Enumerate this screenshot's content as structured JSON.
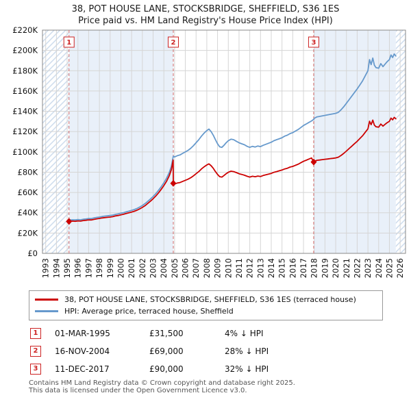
{
  "transactions": [
    {
      "num": "1",
      "date": "01-MAR-1995",
      "price": "£31,500",
      "hpi": "4% ↓ HPI"
    },
    {
      "num": "2",
      "date": "16-NOV-2004",
      "price": "£69,000",
      "hpi": "28% ↓ HPI"
    },
    {
      "num": "3",
      "date": "11-DEC-2017",
      "price": "£90,000",
      "hpi": "32% ↓ HPI"
    }
  ],
  "footer": {
    "line1": "Contains HM Land Registry data © Crown copyright and database right 2025.",
    "line2": "This data is licensed under the Open Government Licence v3.0."
  },
  "chart_data": {
    "type": "line",
    "title": "38, POT HOUSE LANE, STOCKSBRIDGE, SHEFFIELD, S36 1ES",
    "subtitle": "Price paid vs. HM Land Registry's House Price Index (HPI)",
    "x_range": [
      1992.7,
      2026.5
    ],
    "y_range": [
      0,
      220000
    ],
    "x_ticks": [
      1993,
      1994,
      1995,
      1996,
      1997,
      1998,
      1999,
      2000,
      2001,
      2002,
      2003,
      2004,
      2005,
      2006,
      2007,
      2008,
      2009,
      2010,
      2011,
      2012,
      2013,
      2014,
      2015,
      2016,
      2017,
      2018,
      2019,
      2020,
      2021,
      2022,
      2023,
      2024,
      2025,
      2026
    ],
    "y_ticks": [
      0,
      20000,
      40000,
      60000,
      80000,
      100000,
      120000,
      140000,
      160000,
      180000,
      200000,
      220000
    ],
    "y_tick_labels": [
      "£0",
      "£20K",
      "£40K",
      "£60K",
      "£80K",
      "£100K",
      "£120K",
      "£140K",
      "£160K",
      "£180K",
      "£200K",
      "£220K"
    ],
    "grid": true,
    "legend_position": "bottom",
    "colors": {
      "shade": "#e9f0f9",
      "hatch": "#c9d9eb",
      "grid": "#d5d5d5",
      "border": "#888888",
      "sale_line": "#d46a6a",
      "marker_box": "#cc2222"
    },
    "shaded_regions": [
      [
        1995.17,
        2004.88
      ],
      [
        2017.95,
        2025.6
      ]
    ],
    "hatched_regions": [
      [
        1992.7,
        1995.17
      ],
      [
        2025.6,
        2026.5
      ]
    ],
    "markers": [
      {
        "label": "1",
        "x": 1995.17,
        "y": 31500
      },
      {
        "label": "2",
        "x": 2004.88,
        "y": 69000
      },
      {
        "label": "3",
        "x": 2017.95,
        "y": 90000
      }
    ],
    "series": [
      {
        "name": "38, POT HOUSE LANE, STOCKSBRIDGE, SHEFFIELD, S36 1ES (terraced house)",
        "color": "#cc0000",
        "points": [
          [
            1995.17,
            31500
          ],
          [
            1995.5,
            31800
          ],
          [
            1995.75,
            31600
          ],
          [
            1996,
            32000
          ],
          [
            1996.25,
            31800
          ],
          [
            1996.5,
            32300
          ],
          [
            1996.75,
            32600
          ],
          [
            1997,
            33000
          ],
          [
            1997.25,
            32900
          ],
          [
            1997.5,
            33500
          ],
          [
            1997.75,
            34000
          ],
          [
            1998,
            34400
          ],
          [
            1998.25,
            34900
          ],
          [
            1998.5,
            35200
          ],
          [
            1998.75,
            35500
          ],
          [
            1999,
            35800
          ],
          [
            1999.25,
            36200
          ],
          [
            1999.5,
            36900
          ],
          [
            1999.75,
            37300
          ],
          [
            2000,
            38000
          ],
          [
            2000.25,
            38500
          ],
          [
            2000.5,
            39300
          ],
          [
            2000.75,
            40000
          ],
          [
            2001,
            40700
          ],
          [
            2001.25,
            41500
          ],
          [
            2001.5,
            42500
          ],
          [
            2001.75,
            43800
          ],
          [
            2002,
            45300
          ],
          [
            2002.25,
            47000
          ],
          [
            2002.5,
            49200
          ],
          [
            2002.75,
            51400
          ],
          [
            2003,
            53800
          ],
          [
            2003.25,
            56500
          ],
          [
            2003.5,
            59500
          ],
          [
            2003.75,
            63000
          ],
          [
            2004,
            66800
          ],
          [
            2004.25,
            71000
          ],
          [
            2004.5,
            76300
          ],
          [
            2004.7,
            82500
          ],
          [
            2004.87,
            92000
          ],
          [
            2004.88,
            69000
          ],
          [
            2005,
            68400
          ],
          [
            2005.25,
            69300
          ],
          [
            2005.5,
            69800
          ],
          [
            2005.75,
            70900
          ],
          [
            2006,
            72000
          ],
          [
            2006.25,
            73100
          ],
          [
            2006.5,
            74500
          ],
          [
            2006.75,
            76300
          ],
          [
            2007,
            78500
          ],
          [
            2007.25,
            80600
          ],
          [
            2007.5,
            83200
          ],
          [
            2007.75,
            85300
          ],
          [
            2008,
            87100
          ],
          [
            2008.2,
            88200
          ],
          [
            2008.4,
            86400
          ],
          [
            2008.6,
            83900
          ],
          [
            2008.8,
            80600
          ],
          [
            2009,
            77800
          ],
          [
            2009.2,
            75600
          ],
          [
            2009.4,
            75200
          ],
          [
            2009.6,
            76700
          ],
          [
            2009.8,
            78500
          ],
          [
            2010,
            79900
          ],
          [
            2010.25,
            81000
          ],
          [
            2010.5,
            80600
          ],
          [
            2010.75,
            79600
          ],
          [
            2011,
            78500
          ],
          [
            2011.25,
            77800
          ],
          [
            2011.5,
            77000
          ],
          [
            2011.75,
            76000
          ],
          [
            2012,
            75200
          ],
          [
            2012.25,
            76000
          ],
          [
            2012.5,
            75500
          ],
          [
            2012.75,
            76200
          ],
          [
            2013,
            75700
          ],
          [
            2013.25,
            76700
          ],
          [
            2013.5,
            77400
          ],
          [
            2013.75,
            78100
          ],
          [
            2014,
            78800
          ],
          [
            2014.25,
            79900
          ],
          [
            2014.5,
            80600
          ],
          [
            2014.75,
            81400
          ],
          [
            2015,
            82100
          ],
          [
            2015.25,
            83200
          ],
          [
            2015.5,
            83900
          ],
          [
            2015.75,
            85000
          ],
          [
            2016,
            85700
          ],
          [
            2016.25,
            86800
          ],
          [
            2016.5,
            87800
          ],
          [
            2016.75,
            89300
          ],
          [
            2017,
            90700
          ],
          [
            2017.25,
            91800
          ],
          [
            2017.5,
            92900
          ],
          [
            2017.75,
            94000
          ],
          [
            2017.95,
            90000
          ],
          [
            2018,
            90700
          ],
          [
            2018.25,
            91700
          ],
          [
            2018.5,
            92000
          ],
          [
            2018.75,
            92400
          ],
          [
            2019,
            92700
          ],
          [
            2019.25,
            93000
          ],
          [
            2019.5,
            93400
          ],
          [
            2019.75,
            93700
          ],
          [
            2020,
            94100
          ],
          [
            2020.25,
            94800
          ],
          [
            2020.5,
            96500
          ],
          [
            2020.75,
            98500
          ],
          [
            2021,
            100900
          ],
          [
            2021.25,
            103300
          ],
          [
            2021.5,
            105700
          ],
          [
            2021.75,
            108100
          ],
          [
            2022,
            110400
          ],
          [
            2022.25,
            113200
          ],
          [
            2022.5,
            115900
          ],
          [
            2022.75,
            119300
          ],
          [
            2023,
            122700
          ],
          [
            2023.15,
            130200
          ],
          [
            2023.3,
            126800
          ],
          [
            2023.45,
            131300
          ],
          [
            2023.6,
            126500
          ],
          [
            2023.75,
            124800
          ],
          [
            2024,
            124400
          ],
          [
            2024.2,
            127500
          ],
          [
            2024.4,
            125400
          ],
          [
            2024.6,
            127200
          ],
          [
            2024.8,
            128800
          ],
          [
            2025,
            130200
          ],
          [
            2025.15,
            133300
          ],
          [
            2025.3,
            131600
          ],
          [
            2025.45,
            134000
          ],
          [
            2025.6,
            132600
          ]
        ]
      },
      {
        "name": "HPI: Average price, terraced house, Sheffield",
        "color": "#6699cc",
        "points": [
          [
            1995.17,
            32800
          ],
          [
            1995.5,
            33100
          ],
          [
            1995.75,
            32900
          ],
          [
            1996,
            33300
          ],
          [
            1996.25,
            33100
          ],
          [
            1996.5,
            33600
          ],
          [
            1996.75,
            33900
          ],
          [
            1997,
            34300
          ],
          [
            1997.25,
            34200
          ],
          [
            1997.5,
            34900
          ],
          [
            1997.75,
            35400
          ],
          [
            1998,
            35800
          ],
          [
            1998.25,
            36300
          ],
          [
            1998.5,
            36700
          ],
          [
            1998.75,
            37000
          ],
          [
            1999,
            37300
          ],
          [
            1999.25,
            37700
          ],
          [
            1999.5,
            38400
          ],
          [
            1999.75,
            38900
          ],
          [
            2000,
            39600
          ],
          [
            2000.25,
            40100
          ],
          [
            2000.5,
            40900
          ],
          [
            2000.75,
            41600
          ],
          [
            2001,
            42400
          ],
          [
            2001.25,
            43200
          ],
          [
            2001.5,
            44300
          ],
          [
            2001.75,
            45600
          ],
          [
            2002,
            47200
          ],
          [
            2002.25,
            49000
          ],
          [
            2002.5,
            51200
          ],
          [
            2002.75,
            53500
          ],
          [
            2003,
            56000
          ],
          [
            2003.25,
            58800
          ],
          [
            2003.5,
            62000
          ],
          [
            2003.75,
            65600
          ],
          [
            2004,
            69500
          ],
          [
            2004.25,
            74000
          ],
          [
            2004.5,
            79500
          ],
          [
            2004.7,
            86000
          ],
          [
            2004.88,
            95800
          ],
          [
            2005,
            95000
          ],
          [
            2005.25,
            96200
          ],
          [
            2005.5,
            97000
          ],
          [
            2005.75,
            98500
          ],
          [
            2006,
            100000
          ],
          [
            2006.25,
            101500
          ],
          [
            2006.5,
            103500
          ],
          [
            2006.75,
            106000
          ],
          [
            2007,
            109000
          ],
          [
            2007.25,
            112000
          ],
          [
            2007.5,
            115500
          ],
          [
            2007.75,
            118500
          ],
          [
            2008,
            121000
          ],
          [
            2008.2,
            122500
          ],
          [
            2008.4,
            120000
          ],
          [
            2008.6,
            116500
          ],
          [
            2008.8,
            112000
          ],
          [
            2009,
            108000
          ],
          [
            2009.2,
            105000
          ],
          [
            2009.4,
            104500
          ],
          [
            2009.6,
            106500
          ],
          [
            2009.8,
            109000
          ],
          [
            2010,
            111000
          ],
          [
            2010.25,
            112500
          ],
          [
            2010.5,
            112000
          ],
          [
            2010.75,
            110500
          ],
          [
            2011,
            109000
          ],
          [
            2011.25,
            108000
          ],
          [
            2011.5,
            107000
          ],
          [
            2011.75,
            105500
          ],
          [
            2012,
            104500
          ],
          [
            2012.25,
            105500
          ],
          [
            2012.5,
            104800
          ],
          [
            2012.75,
            105800
          ],
          [
            2013,
            105200
          ],
          [
            2013.25,
            106500
          ],
          [
            2013.5,
            107500
          ],
          [
            2013.75,
            108500
          ],
          [
            2014,
            109500
          ],
          [
            2014.25,
            111000
          ],
          [
            2014.5,
            112000
          ],
          [
            2014.75,
            113000
          ],
          [
            2015,
            114000
          ],
          [
            2015.25,
            115500
          ],
          [
            2015.5,
            116500
          ],
          [
            2015.75,
            118000
          ],
          [
            2016,
            119000
          ],
          [
            2016.25,
            120500
          ],
          [
            2016.5,
            122000
          ],
          [
            2016.75,
            124000
          ],
          [
            2017,
            126000
          ],
          [
            2017.25,
            127500
          ],
          [
            2017.5,
            129000
          ],
          [
            2017.75,
            130500
          ],
          [
            2017.95,
            132000
          ],
          [
            2018,
            133000
          ],
          [
            2018.25,
            134500
          ],
          [
            2018.5,
            135000
          ],
          [
            2018.75,
            135500
          ],
          [
            2019,
            136000
          ],
          [
            2019.25,
            136500
          ],
          [
            2019.5,
            137000
          ],
          [
            2019.75,
            137500
          ],
          [
            2020,
            138000
          ],
          [
            2020.25,
            139000
          ],
          [
            2020.5,
            141500
          ],
          [
            2020.75,
            144500
          ],
          [
            2021,
            148000
          ],
          [
            2021.25,
            151500
          ],
          [
            2021.5,
            155000
          ],
          [
            2021.75,
            158500
          ],
          [
            2022,
            162000
          ],
          [
            2022.25,
            166000
          ],
          [
            2022.5,
            170000
          ],
          [
            2022.75,
            175000
          ],
          [
            2023,
            180000
          ],
          [
            2023.15,
            191000
          ],
          [
            2023.3,
            186000
          ],
          [
            2023.45,
            192500
          ],
          [
            2023.6,
            185500
          ],
          [
            2023.75,
            183000
          ],
          [
            2024,
            182500
          ],
          [
            2024.2,
            187000
          ],
          [
            2024.4,
            184000
          ],
          [
            2024.6,
            186500
          ],
          [
            2024.8,
            189000
          ],
          [
            2025,
            191000
          ],
          [
            2025.15,
            195500
          ],
          [
            2025.3,
            193000
          ],
          [
            2025.45,
            196500
          ],
          [
            2025.6,
            194500
          ]
        ]
      }
    ]
  }
}
